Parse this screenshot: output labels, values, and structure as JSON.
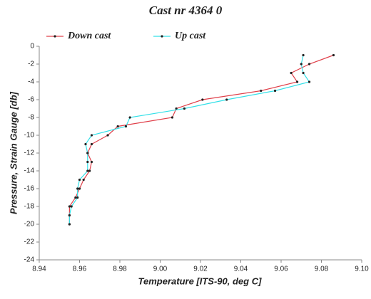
{
  "chart_data": {
    "type": "line",
    "title": "Cast nr 4364 0",
    "x_label": "Temperature [ITS-90, deg C]",
    "y_label": "Pressure, Strain Gauge [db]",
    "series": [
      {
        "name": "Down cast",
        "color": "#e0404a",
        "x": [
          9.086,
          9.074,
          9.065,
          9.068,
          9.05,
          9.021,
          9.008,
          9.006,
          8.979,
          8.974,
          8.966,
          8.964,
          8.966,
          8.965,
          8.962,
          8.96,
          8.958,
          8.955,
          8.955,
          8.955
        ],
        "values": [
          -1,
          -2,
          -3,
          -4,
          -5,
          -6,
          -7,
          -8,
          -9,
          -10,
          -11,
          -12,
          -13,
          -14,
          -15,
          -16,
          -17,
          -18,
          -19,
          -20
        ]
      },
      {
        "name": "Up cast",
        "color": "#33e0e8",
        "x": [
          9.071,
          9.07,
          9.071,
          9.074,
          9.057,
          9.033,
          9.012,
          8.985,
          8.983,
          8.966,
          8.963,
          8.964,
          8.964,
          8.964,
          8.96,
          8.959,
          8.959,
          8.956,
          8.955,
          8.955
        ],
        "values": [
          -1,
          -2,
          -3,
          -4,
          -5,
          -6,
          -7,
          -8,
          -9,
          -10,
          -11,
          -12,
          -13,
          -14,
          -15,
          -16,
          -17,
          -18,
          -19,
          -20
        ]
      }
    ],
    "xlim": [
      8.94,
      9.1
    ],
    "xticks": [
      8.94,
      8.96,
      8.98,
      {
        "value": 9,
        "label": "9.00"
      },
      9.02,
      9.04,
      9.06,
      9.08,
      {
        "value": 9.1,
        "label": "9.10"
      }
    ],
    "ylim": [
      0,
      -24
    ],
    "yticks": [
      0,
      -2,
      -4,
      -6,
      -8,
      -10,
      -12,
      -14,
      -16,
      -18,
      -20,
      -22,
      -24
    ],
    "grid": false
  }
}
